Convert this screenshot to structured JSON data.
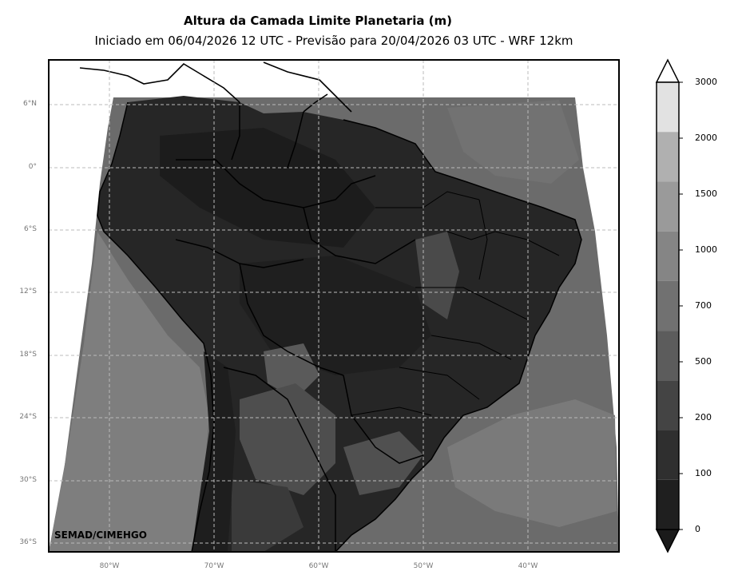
{
  "title": "Altura da Camada Limite Planetaria (m)",
  "subtitle": "Iniciado em 06/04/2026 12 UTC - Previsão para 20/04/2026 03 UTC - WRF 12km",
  "credit": "SEMAD/CIMEHGO",
  "lat_labels": [
    "6°N",
    "0°",
    "6°S",
    "12°S",
    "18°S",
    "24°S",
    "30°S",
    "36°S"
  ],
  "lon_labels": [
    "80°W",
    "70°W",
    "60°W",
    "50°W",
    "40°W"
  ],
  "colorbar": {
    "levels": [
      "0",
      "100",
      "200",
      "500",
      "700",
      "1000",
      "1500",
      "2000",
      "3000"
    ],
    "colors": [
      "#1f1f1f",
      "#2f2f2f",
      "#444444",
      "#5c5c5c",
      "#717171",
      "#858585",
      "#9a9a9a",
      "#b0b0b0",
      "#e2e2e2"
    ],
    "extend": "both",
    "under_color": "#1a1a1a",
    "over_color": "#ffffff"
  },
  "map": {
    "ocean_color": "#6b6b6b",
    "land_color": "#262626",
    "grid": "dashed"
  }
}
